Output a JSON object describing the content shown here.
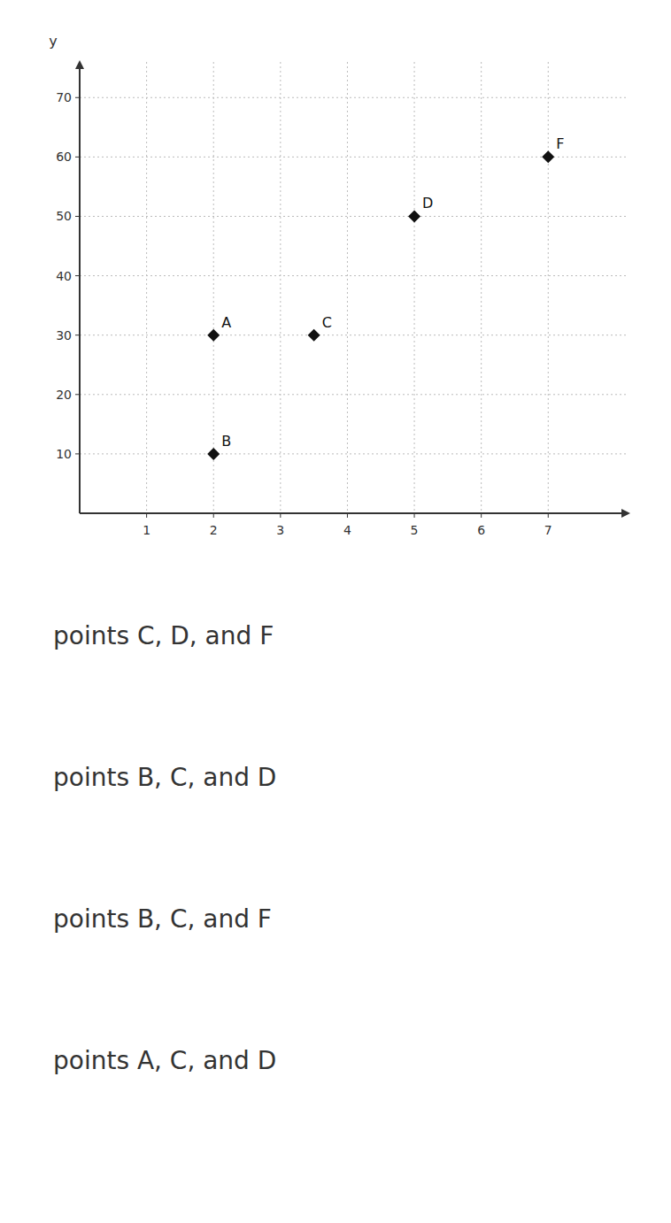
{
  "chart_data": {
    "type": "scatter",
    "labels": [
      "A",
      "B",
      "C",
      "D",
      "F"
    ],
    "x": [
      2,
      2,
      3.5,
      5,
      7
    ],
    "values": [
      30,
      10,
      30,
      50,
      60
    ],
    "color": "#111111",
    "marker": "diamond",
    "xlim": [
      0,
      8.2
    ],
    "ylim": [
      0,
      76
    ],
    "xticks": [
      1,
      2,
      3,
      4,
      5,
      6,
      7
    ],
    "yticks": [
      10,
      20,
      30,
      40,
      50,
      60,
      70
    ],
    "ylabel": "y",
    "grid": true,
    "annotations": [
      "points C, D, and F",
      "points B, C, and D",
      "points B, C, and F",
      "points A, C, and D"
    ]
  }
}
